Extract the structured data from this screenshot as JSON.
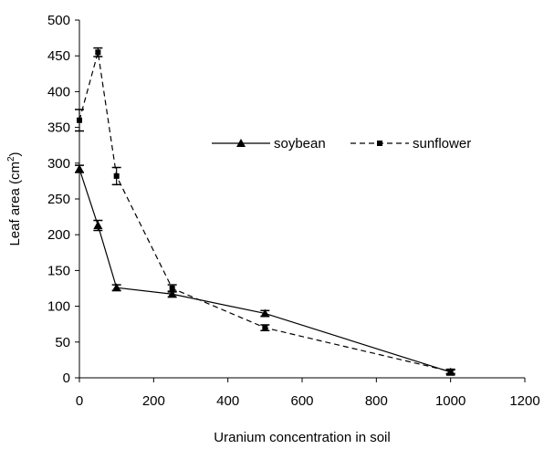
{
  "chart_data": {
    "type": "line",
    "title": "",
    "xlabel": "Uranium concentration in soil",
    "ylabel": "Leaf area (cm2)",
    "ylabel_main": "Leaf area (cm",
    "ylabel_sup": "2",
    "ylabel_close": ")",
    "xlim": [
      0,
      1200
    ],
    "ylim": [
      0,
      500
    ],
    "xticks": [
      0,
      200,
      400,
      600,
      800,
      1000,
      1200
    ],
    "yticks": [
      0,
      50,
      100,
      150,
      200,
      250,
      300,
      350,
      400,
      450,
      500
    ],
    "grid": false,
    "legend_position": "center-right",
    "series": [
      {
        "name": "soybean",
        "line_style": "solid",
        "marker": "triangle",
        "color": "#000000",
        "points": [
          {
            "x": 0,
            "y": 292,
            "err": 5
          },
          {
            "x": 50,
            "y": 213,
            "err": 7
          },
          {
            "x": 100,
            "y": 126,
            "err": 4
          },
          {
            "x": 250,
            "y": 117,
            "err": 4
          },
          {
            "x": 500,
            "y": 90,
            "err": 4
          },
          {
            "x": 1000,
            "y": 8,
            "err": 3
          }
        ]
      },
      {
        "name": "sunflower",
        "line_style": "dashed",
        "marker": "square",
        "color": "#000000",
        "points": [
          {
            "x": 0,
            "y": 360,
            "err": 15
          },
          {
            "x": 50,
            "y": 455,
            "err": 6
          },
          {
            "x": 100,
            "y": 282,
            "err": 12
          },
          {
            "x": 250,
            "y": 125,
            "err": 5
          },
          {
            "x": 500,
            "y": 70,
            "err": 4
          },
          {
            "x": 1000,
            "y": 9,
            "err": 3
          }
        ]
      }
    ]
  }
}
